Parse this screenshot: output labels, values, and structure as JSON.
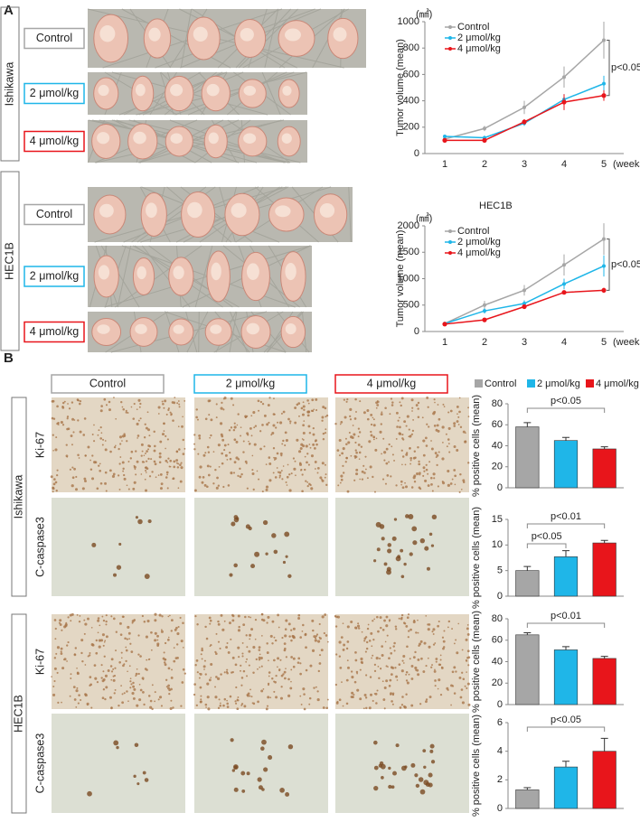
{
  "panels": [
    "A",
    "B"
  ],
  "panel_a": {
    "cell_lines": [
      "Ishikawa",
      "HEC1B"
    ],
    "groups": [
      "Control",
      "2 μmol/kg",
      "4 μmol/kg"
    ]
  },
  "panel_b": {
    "columns": [
      "Control",
      "2 μmol/kg",
      "4 μmol/kg"
    ],
    "cell_lines": [
      "Ishikawa",
      "HEC1B"
    ],
    "stains": [
      "Ki-67",
      "C-caspase3"
    ],
    "legend": [
      {
        "name": "Control",
        "color": "#a6a6a6"
      },
      {
        "name": "2 μmol/kg",
        "color": "#1fb6e8"
      },
      {
        "name": "4 μmol/kg",
        "color": "#e8151b"
      }
    ]
  },
  "chart_data": [
    {
      "type": "line",
      "unit": "(㎣)",
      "ylabel": "Tumor volume (mean)",
      "xlabel": "(weeks)",
      "categories": [
        "1",
        "2",
        "3",
        "4",
        "5"
      ],
      "ylim": [
        0,
        1000
      ],
      "yticks": [
        0,
        200,
        400,
        600,
        800,
        1000
      ],
      "series": [
        {
          "name": "Control",
          "color": "#a6a6a6",
          "values": [
            110,
            190,
            350,
            580,
            860
          ],
          "errors": [
            10,
            20,
            50,
            80,
            140
          ]
        },
        {
          "name": "2 μmol/kg",
          "color": "#1fb6e8",
          "values": [
            130,
            120,
            230,
            410,
            530
          ],
          "errors": [
            10,
            15,
            20,
            40,
            60
          ]
        },
        {
          "name": "4 μmol/kg",
          "color": "#e8151b",
          "values": [
            100,
            100,
            240,
            390,
            440
          ],
          "errors": [
            8,
            10,
            20,
            60,
            40
          ]
        }
      ],
      "annotations": [
        "p<0.05"
      ]
    },
    {
      "type": "line",
      "title": "HEC1B",
      "unit": "(㎣)",
      "ylabel": "Tumor volume (mean)",
      "xlabel": "(weeks)",
      "categories": [
        "1",
        "2",
        "3",
        "4",
        "5"
      ],
      "ylim": [
        0,
        2000
      ],
      "yticks": [
        0,
        500,
        1000,
        1500,
        2000
      ],
      "series": [
        {
          "name": "Control",
          "color": "#a6a6a6",
          "values": [
            150,
            500,
            780,
            1260,
            1750
          ],
          "errors": [
            30,
            80,
            100,
            200,
            300
          ]
        },
        {
          "name": "2 μmol/kg",
          "color": "#1fb6e8",
          "values": [
            150,
            390,
            530,
            900,
            1240
          ],
          "errors": [
            20,
            50,
            60,
            100,
            200
          ]
        },
        {
          "name": "4 μmol/kg",
          "color": "#e8151b",
          "values": [
            140,
            220,
            470,
            740,
            780
          ],
          "errors": [
            15,
            20,
            40,
            40,
            50
          ]
        }
      ],
      "annotations": [
        "p<0.05"
      ]
    },
    {
      "type": "bar",
      "ylabel": "% positive cells (mean)",
      "values": [
        58,
        45,
        37
      ],
      "errors": [
        4,
        3,
        2
      ],
      "colors": [
        "#a6a6a6",
        "#1fb6e8",
        "#e8151b"
      ],
      "ylim": [
        0,
        80
      ],
      "yticks": [
        0,
        20,
        40,
        60,
        80
      ],
      "annotations": [
        "p<0.05"
      ]
    },
    {
      "type": "bar",
      "ylabel": "% positive cells (mean)",
      "values": [
        5,
        7.7,
        10.4
      ],
      "errors": [
        0.8,
        1.2,
        0.5
      ],
      "colors": [
        "#a6a6a6",
        "#1fb6e8",
        "#e8151b"
      ],
      "ylim": [
        0,
        15
      ],
      "yticks": [
        0,
        5,
        10,
        15
      ],
      "annotations": [
        "p<0.01",
        "p<0.05"
      ]
    },
    {
      "type": "bar",
      "ylabel": "% positive cells (mean)",
      "values": [
        65,
        51,
        43
      ],
      "errors": [
        2,
        3,
        2
      ],
      "colors": [
        "#a6a6a6",
        "#1fb6e8",
        "#e8151b"
      ],
      "ylim": [
        0,
        80
      ],
      "yticks": [
        0,
        20,
        40,
        60,
        80
      ],
      "annotations": [
        "p<0.01"
      ]
    },
    {
      "type": "bar",
      "ylabel": "% positive cells (mean)",
      "values": [
        1.3,
        2.9,
        4.0
      ],
      "errors": [
        0.15,
        0.4,
        0.9
      ],
      "colors": [
        "#a6a6a6",
        "#1fb6e8",
        "#e8151b"
      ],
      "ylim": [
        0,
        6
      ],
      "yticks": [
        0,
        2,
        4,
        6
      ],
      "annotations": [
        "p<0.05"
      ]
    }
  ]
}
